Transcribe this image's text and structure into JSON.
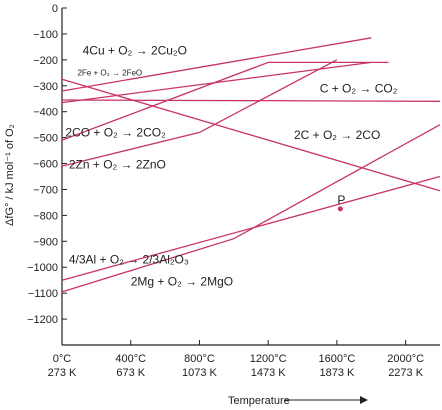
{
  "chart_data": {
    "type": "line",
    "title": "",
    "ylabel": "ΔfG° / kJ mol⁻¹ of O₂",
    "xlabel": "Temperature",
    "x_ticks": [
      {
        "celsius": "0°C",
        "kelvin": "273 K",
        "value": 0
      },
      {
        "celsius": "400°C",
        "kelvin": "673 K",
        "value": 400
      },
      {
        "celsius": "800°C",
        "kelvin": "1073 K",
        "value": 800
      },
      {
        "celsius": "1200°C",
        "kelvin": "1473 K",
        "value": 1200
      },
      {
        "celsius": "1600°C",
        "kelvin": "1873 K",
        "value": 1600
      },
      {
        "celsius": "2000°C",
        "kelvin": "2273 K",
        "value": 2000
      }
    ],
    "y_ticks": [
      0,
      -100,
      -200,
      -300,
      -400,
      -500,
      -600,
      -700,
      -800,
      -900,
      -1000,
      -1100,
      -1200
    ],
    "xlim": [
      0,
      2200
    ],
    "ylim": [
      -1300,
      0
    ],
    "series": [
      {
        "name": "4Cu + O₂ → 2Cu₂O",
        "label_x": 120,
        "label_y": -180,
        "points": [
          [
            0,
            -320
          ],
          [
            1800,
            -115
          ]
        ]
      },
      {
        "name": "2Fe + O₂ → 2FeO",
        "label_x": 90,
        "label_y": -260,
        "small": true,
        "points": [
          [
            0,
            -365
          ],
          [
            1800,
            -210
          ]
        ]
      },
      {
        "name": "C + O₂ → CO₂",
        "label_x": 1500,
        "label_y": -325,
        "points": [
          [
            0,
            -355
          ],
          [
            2200,
            -360
          ]
        ]
      },
      {
        "name": "2CO + O₂ → 2CO₂",
        "label_x": 20,
        "label_y": -495,
        "points": [
          [
            0,
            -510
          ],
          [
            1200,
            -210
          ],
          [
            1900,
            -210
          ]
        ]
      },
      {
        "name": "2Zn + O₂ → 2ZnO",
        "label_x": 40,
        "label_y": -620,
        "points": [
          [
            0,
            -610
          ],
          [
            800,
            -480
          ],
          [
            1600,
            -200
          ]
        ]
      },
      {
        "name": "2C + O₂ → 2CO",
        "label_x": 1350,
        "label_y": -505,
        "points": [
          [
            0,
            -275
          ],
          [
            2200,
            -705
          ]
        ]
      },
      {
        "name": "4/3Al + O₂ → 2/3Al₂O₃",
        "label_x": 40,
        "label_y": -985,
        "points": [
          [
            0,
            -1050
          ],
          [
            2200,
            -650
          ]
        ]
      },
      {
        "name": "2Mg + O₂ → 2MgO",
        "label_x": 400,
        "label_y": -1070,
        "points": [
          [
            0,
            -1095
          ],
          [
            1000,
            -890
          ],
          [
            2200,
            -450
          ]
        ]
      }
    ],
    "annotations": [
      {
        "text": "P",
        "x": 1620,
        "y": -775
      }
    ],
    "grid": false
  }
}
